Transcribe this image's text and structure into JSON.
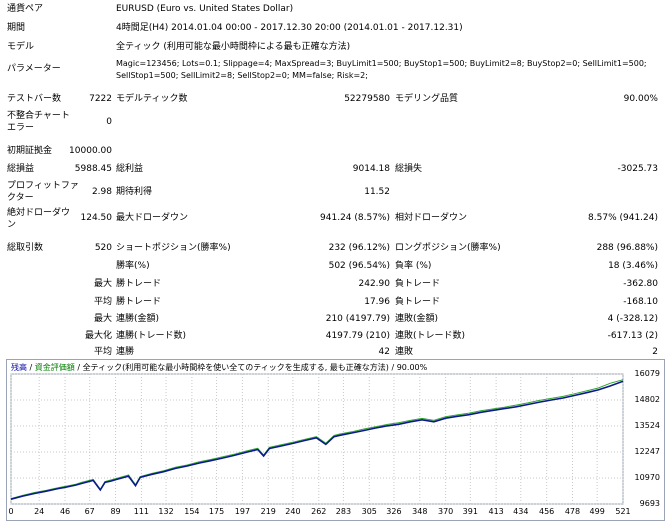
{
  "report": {
    "symbol": {
      "label": "通貨ペア",
      "value": "EURUSD (Euro vs. United States Dollar)"
    },
    "period": {
      "label": "期間",
      "value": "4時間足(H4) 2014.01.04 00:00 - 2017.12.30 20:00 (2014.01.01 - 2017.12.31)"
    },
    "model": {
      "label": "モデル",
      "value": "全ティック (利用可能な最小時間枠による最も正確な方法)"
    },
    "params": {
      "label": "パラメーター",
      "line1": "Magic=123456; Lots=0.1; Slippage=4; MaxSpread=3; BuyLimit1=500; BuyStop1=500; BuyLimit2=8; BuyStop2=0; SellLimit1=500;",
      "line2": "SellStop1=500; SellLimit2=8; SellStop2=0; MM=false; Risk=2;"
    },
    "bars_tested": {
      "label": "テストバー数",
      "value": "7222"
    },
    "ticks_modelled": {
      "label": "モデルティック数",
      "value": "52279580"
    },
    "modelling_quality": {
      "label": "モデリング品質",
      "value": "90.00%"
    },
    "mismatch_errors": {
      "label1": "不整合チャート",
      "label2": "エラー",
      "value": "0"
    },
    "initial_deposit": {
      "label": "初期証拠金",
      "value": "10000.00"
    },
    "total_net_profit": {
      "label": "総損益",
      "value": "5988.45"
    },
    "gross_profit": {
      "label": "総利益",
      "value": "9014.18"
    },
    "gross_loss": {
      "label": "総損失",
      "value": "-3025.73"
    },
    "profit_factor": {
      "label1": "プロフィットファ",
      "label2": "クター",
      "value": "2.98"
    },
    "expected_payoff": {
      "label": "期待利得",
      "value": "11.52"
    },
    "abs_drawdown": {
      "label1": "絶対ドローダウ",
      "label2": "ン",
      "value": "124.50"
    },
    "max_drawdown": {
      "label": "最大ドローダウン",
      "value": "941.24 (8.57%)"
    },
    "rel_drawdown": {
      "label": "相対ドローダウン",
      "value": "8.57% (941.24)"
    },
    "total_trades": {
      "label": "総取引数",
      "value": "520"
    },
    "short_positions": {
      "label": "ショートポジション(勝率%)",
      "value": "232 (96.12%)"
    },
    "long_positions": {
      "label": "ロングポジション(勝率%)",
      "value": "288 (96.88%)"
    },
    "rows": [
      {
        "h": "",
        "l1": "勝率(%)",
        "v1": "502 (96.54%)",
        "l2": "負率 (%)",
        "v2": "18 (3.46%)"
      },
      {
        "h": "最大",
        "l1": "勝トレード",
        "v1": "242.90",
        "l2": "負トレード",
        "v2": "-362.80"
      },
      {
        "h": "平均",
        "l1": "勝トレード",
        "v1": "17.96",
        "l2": "負トレード",
        "v2": "-168.10"
      },
      {
        "h": "最大",
        "l1": "連勝(金額)",
        "v1": "210 (4197.79)",
        "l2": "連敗(金額)",
        "v2": "4 (-328.12)"
      },
      {
        "h": "最大化",
        "l1": "連勝(トレード数)",
        "v1": "4197.79 (210)",
        "l2": "連敗(トレード数)",
        "v2": "-617.13 (2)"
      },
      {
        "h": "平均",
        "l1": "連勝",
        "v1": "42",
        "l2": "連敗",
        "v2": "2"
      }
    ]
  },
  "chart": {
    "legend_balance": "残高",
    "legend_sep1": " / ",
    "legend_equity": "資金評価額",
    "legend_sep2": " / ",
    "legend_model": "全ティック(利用可能な最小時間枠を使い全てのティックを生成する, 最も正確な方法)",
    "legend_sep3": " / ",
    "legend_quality": "90.00%",
    "colors": {
      "balance": "#0b1a8a",
      "equity": "#2fa52f",
      "grid": "#c8c8c8"
    }
  },
  "chart_data": {
    "type": "line",
    "title": "",
    "ylim": [
      9693,
      16079
    ],
    "y_ticks": [
      "16079",
      "14802",
      "13524",
      "12247",
      "10970",
      "9693"
    ],
    "x_ticks": [
      "0",
      "24",
      "46",
      "67",
      "89",
      "111",
      "132",
      "154",
      "175",
      "197",
      "219",
      "240",
      "262",
      "283",
      "305",
      "326",
      "348",
      "370",
      "391",
      "413",
      "434",
      "456",
      "478",
      "499",
      "521"
    ],
    "x_max": 521,
    "series": [
      {
        "name": "残高",
        "x": [
          0,
          10,
          20,
          30,
          40,
          45,
          50,
          55,
          60,
          70,
          76,
          80,
          85,
          90,
          100,
          106,
          110,
          120,
          130,
          140,
          150,
          160,
          170,
          180,
          190,
          200,
          210,
          215,
          220,
          230,
          240,
          250,
          260,
          268,
          275,
          280,
          290,
          300,
          310,
          320,
          330,
          340,
          350,
          360,
          370,
          380,
          390,
          400,
          410,
          420,
          430,
          440,
          450,
          460,
          470,
          480,
          490,
          500,
          510,
          521
        ],
        "values": [
          9930,
          10080,
          10210,
          10320,
          10450,
          10500,
          10560,
          10620,
          10700,
          10850,
          10380,
          10760,
          10820,
          10900,
          11060,
          10590,
          11000,
          11150,
          11280,
          11440,
          11560,
          11700,
          11820,
          11950,
          12080,
          12230,
          12370,
          12050,
          12420,
          12540,
          12670,
          12810,
          12940,
          12620,
          13000,
          13070,
          13180,
          13300,
          13420,
          13530,
          13610,
          13730,
          13830,
          13730,
          13910,
          14000,
          14080,
          14200,
          14290,
          14380,
          14470,
          14580,
          14700,
          14800,
          14900,
          15030,
          15160,
          15300,
          15490,
          15720
        ]
      },
      {
        "name": "資金評価額",
        "x": [
          0,
          10,
          20,
          30,
          40,
          45,
          50,
          55,
          60,
          70,
          76,
          80,
          85,
          90,
          100,
          106,
          110,
          120,
          130,
          140,
          150,
          160,
          170,
          180,
          190,
          200,
          210,
          215,
          220,
          230,
          240,
          250,
          260,
          268,
          275,
          280,
          290,
          300,
          310,
          320,
          330,
          340,
          350,
          360,
          370,
          380,
          390,
          400,
          410,
          420,
          430,
          440,
          450,
          460,
          470,
          480,
          490,
          500,
          510,
          521
        ],
        "values": [
          9960,
          10120,
          10260,
          10360,
          10490,
          10550,
          10600,
          10660,
          10760,
          10900,
          10420,
          10800,
          10870,
          10950,
          11120,
          10640,
          11040,
          11200,
          11330,
          11500,
          11610,
          11760,
          11880,
          12010,
          12140,
          12290,
          12430,
          12100,
          12480,
          12600,
          12730,
          12870,
          13000,
          12680,
          13060,
          13130,
          13240,
          13370,
          13480,
          13600,
          13680,
          13800,
          13900,
          13800,
          13980,
          14070,
          14160,
          14270,
          14360,
          14450,
          14550,
          14660,
          14780,
          14880,
          14980,
          15110,
          15250,
          15390,
          15620,
          15800
        ]
      }
    ]
  }
}
